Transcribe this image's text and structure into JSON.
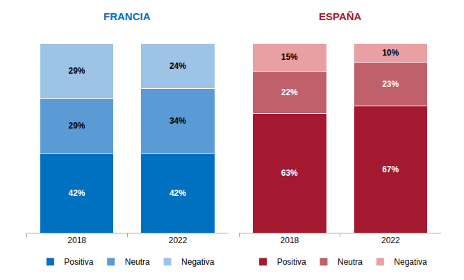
{
  "chart_data": [
    {
      "type": "bar",
      "title": "FRANCIA",
      "stacked": true,
      "data_labels": true,
      "tick_labels": "x",
      "legend": "bottom",
      "categories": [
        "2018",
        "2022"
      ],
      "ylim": [
        0,
        100
      ],
      "series": [
        {
          "name": "Positiva",
          "color": "#0070c0",
          "values": [
            42,
            42
          ],
          "value_labels": [
            "42%",
            "42%"
          ]
        },
        {
          "name": "Neutra",
          "color": "#5b9bd5",
          "values": [
            29,
            34
          ],
          "value_labels": [
            "29%",
            "34%"
          ]
        },
        {
          "name": "Negativa",
          "color": "#9dc3e6",
          "values": [
            29,
            24
          ],
          "value_labels": [
            "29%",
            "24%"
          ]
        }
      ]
    },
    {
      "type": "bar",
      "title": "ESPAÑA",
      "stacked": true,
      "data_labels": true,
      "tick_labels": "x",
      "legend": "bottom",
      "categories": [
        "2018",
        "2022"
      ],
      "ylim": [
        0,
        100
      ],
      "series": [
        {
          "name": "Positiva",
          "color": "#a51930",
          "values": [
            63,
            67
          ],
          "value_labels": [
            "63%",
            "67%"
          ]
        },
        {
          "name": "Neutra",
          "color": "#c0606b",
          "values": [
            22,
            23
          ],
          "value_labels": [
            "22%",
            "23%"
          ]
        },
        {
          "name": "Negativa",
          "color": "#e8a0a3",
          "values": [
            15,
            10
          ],
          "value_labels": [
            "15%",
            "10%"
          ]
        }
      ]
    }
  ]
}
